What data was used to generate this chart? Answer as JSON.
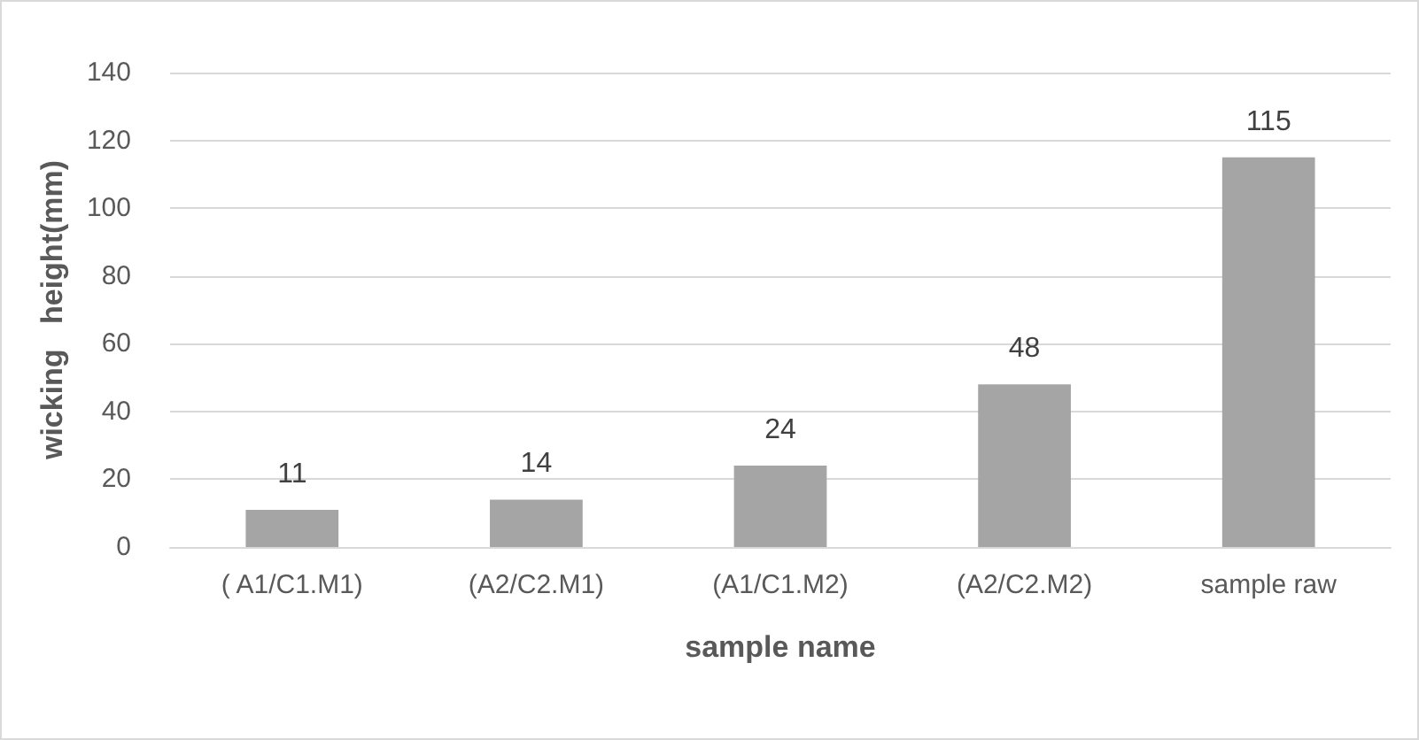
{
  "chart_data": {
    "type": "bar",
    "xlabel": "sample name",
    "ylabel": "wicking   height(mm)",
    "categories": [
      "( A1/C1.M1)",
      "(A2/C2.M1)",
      "(A1/C1.M2)",
      "(A2/C2.M2)",
      "sample raw"
    ],
    "values": [
      11,
      14,
      24,
      48,
      115
    ],
    "color": "#a5a5a5",
    "ylim": [
      0,
      140
    ],
    "yticks": [
      0,
      20,
      40,
      60,
      80,
      100,
      120,
      140
    ],
    "grid": "y",
    "data_labels": true
  }
}
